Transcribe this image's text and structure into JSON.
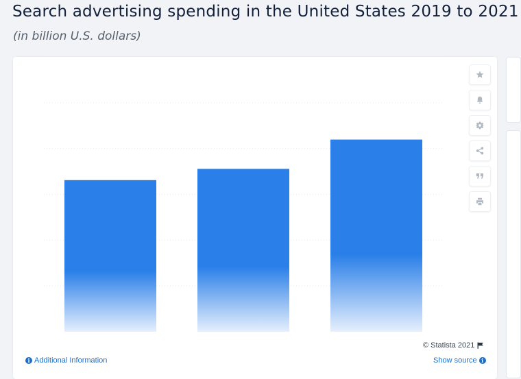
{
  "header": {
    "title": "Search advertising spending in the United States 2019 to 2021",
    "subtitle": "(in billion U.S. dollars)"
  },
  "toolbar": {
    "buttons": [
      {
        "name": "favorite",
        "icon": "star-icon"
      },
      {
        "name": "notification",
        "icon": "bell-icon"
      },
      {
        "name": "settings",
        "icon": "gear-icon"
      },
      {
        "name": "share",
        "icon": "share-icon"
      },
      {
        "name": "cite",
        "icon": "quote-icon"
      },
      {
        "name": "print",
        "icon": "printer-icon"
      }
    ]
  },
  "footer": {
    "copyright": "© Statista 2021",
    "additional_info": "Additional Information",
    "show_source": "Show source"
  },
  "colors": {
    "bar": "#2a7fe8",
    "bar_fade": "#e6effd",
    "link": "#1d6ec8",
    "grid": "#e8ebef"
  },
  "chart_data": {
    "type": "bar",
    "categories": [
      "",
      "",
      ""
    ],
    "values": [
      66.2,
      71.1,
      83.9
    ],
    "ylim": [
      0,
      120
    ],
    "grid": true,
    "xlabel": "",
    "ylabel": ""
  }
}
